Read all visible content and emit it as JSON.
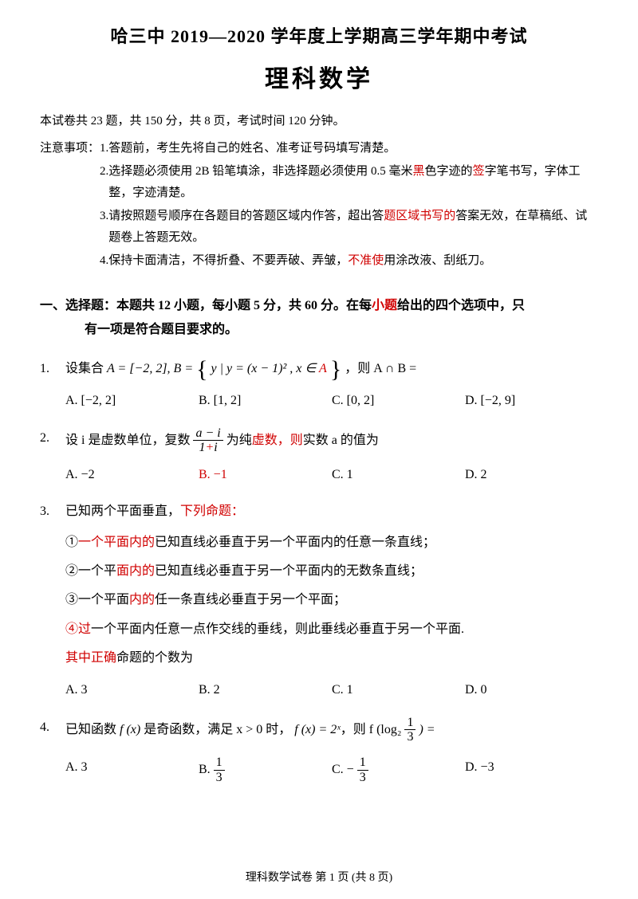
{
  "header": {
    "title": "哈三中 2019—2020 学年度上学期高三学年期中考试",
    "subject": "理科数学"
  },
  "summary": "本试卷共 23 题，共 150 分，共 8 页，考试时间 120 分钟。",
  "notice": {
    "label": "注意事项：",
    "items": [
      {
        "num": "1.",
        "parts": [
          {
            "t": "答题前，考生先将自己的姓名、准考证号码填写清楚。"
          }
        ]
      },
      {
        "num": "2.",
        "parts": [
          {
            "t": "选择题必须使用 2B 铅笔填涂，非选择题必须使用 0.5 毫米"
          },
          {
            "t": "黑",
            "red": true
          },
          {
            "t": "色字迹的"
          },
          {
            "t": "签",
            "red": true
          },
          {
            "t": "字笔书写，字体工整，字迹清楚。"
          }
        ]
      },
      {
        "num": "3.",
        "parts": [
          {
            "t": "请按照题号顺序在各题目的答题区域内作答，超出答"
          },
          {
            "t": "题区域书写的",
            "red": true
          },
          {
            "t": "答案无效，在草稿纸、试题卷上答题无效。"
          }
        ]
      },
      {
        "num": "4.",
        "parts": [
          {
            "t": "保持卡面清洁，不得折叠、不要弄破、弄皱，"
          },
          {
            "t": "不准使",
            "red": true
          },
          {
            "t": "用涂改液、刮纸刀。"
          }
        ]
      }
    ]
  },
  "section1": {
    "lead": "一、选择题：本题共 12 小题，每小题 5 分，共 60 分。在每",
    "lead_red": "小题",
    "lead2": "给出的四个选项中，只",
    "cont": "有一项是符合题目要求的。"
  },
  "q1": {
    "num": "1.",
    "stem_a": "设集合 ",
    "set_a": "A = [−2, 2], B = ",
    "set_b": "y | y = (x − 1)² , x ∈ ",
    "set_b_red": "A",
    "stem_b": "，则 A ∩ B =",
    "opts": {
      "A": "A.  [−2, 2]",
      "B": "B.  [1, 2]",
      "C": "C.  [0, 2]",
      "D": "D.  [−2, 9]"
    }
  },
  "q2": {
    "num": "2.",
    "stem_a": "设 i 是虚数单位，复数 ",
    "frac_num": "a − i",
    "frac_den_a": "1",
    "frac_den_red": "+",
    "frac_den_b": "i",
    "stem_b": " 为纯",
    "stem_red": "虚数，则",
    "stem_c": "实数 a 的值为",
    "opts": {
      "A": "A.  −2",
      "B": "B.  −1",
      "C": "C.  1",
      "D": "D.  2"
    },
    "b_red": true
  },
  "q3": {
    "num": "3.",
    "stem_a": "已知两个平面垂直，",
    "stem_red": "下列命题：",
    "sub": [
      {
        "n": "①",
        "pre_red": "一个平面内的",
        "post": "已知直线必垂直于另一个平面内的任意一条直线；"
      },
      {
        "n": "②",
        "pre": "一个平",
        "pre_red": "面内的",
        "post": "已知直线必垂直于另一个平面内的无数条直线；"
      },
      {
        "n": "③",
        "pre": "一个平面",
        "pre_red": "内的",
        "post": "任一条直线必垂直于另一个平面；"
      },
      {
        "n4": true,
        "n_red": "④过",
        "pre": "一个平面内任意一点作交线的垂线，则此垂线必垂直于另一个平面."
      }
    ],
    "tail_red": "其中正确",
    "tail": "命题的个数为",
    "opts": {
      "A": "A.  3",
      "B": "B.  2",
      "C": "C.  1",
      "D": "D.  0"
    }
  },
  "q4": {
    "num": "4.",
    "stem_a": "已知函数 ",
    "fx": "f (x)",
    "stem_b": " 是奇函数，满足 x > 0 时， ",
    "fx2": "f (x) = 2ˣ",
    "stem_c": "，则 f (log₂ ",
    "frac_num": "1",
    "frac_den": "3",
    "stem_d": ") =",
    "opts": {
      "A": "A.  3",
      "B_pre": "B.  ",
      "B_num": "1",
      "B_den": "3",
      "C_pre": "C.  −",
      "C_num": "1",
      "C_den": "3",
      "D": "D.  −3"
    }
  },
  "footer": "理科数学试卷  第 1 页   (共 8 页)"
}
